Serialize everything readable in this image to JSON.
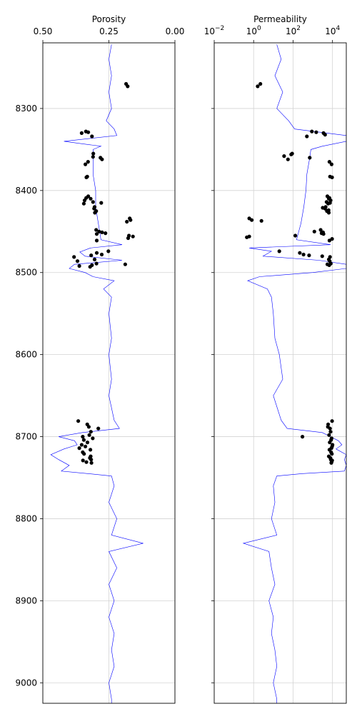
{
  "chart_data": [
    {
      "type": "scatter",
      "title": "Porosity",
      "x_scale": "linear",
      "x_reversed": true,
      "xlim": [
        0.5,
        0.0
      ],
      "ylim": [
        9025,
        8220
      ],
      "y_reversed": true,
      "x_tick_values": [
        0.5,
        0.25,
        0.0
      ],
      "x_tick_labels": [
        "0.50",
        "0.25",
        "0.00"
      ],
      "y_tick_values": [
        8300,
        8400,
        8500,
        8600,
        8700,
        8800,
        8900,
        9000
      ],
      "y_tick_labels": [
        "8300",
        "8400",
        "8500",
        "8600",
        "8700",
        "8800",
        "8900",
        "9000"
      ],
      "grid": true,
      "x_ticks_position": "top",
      "curve_color": "#0000ff",
      "point_color": "#000000",
      "log_curve": {
        "name": "",
        "points": [
          [
            8222,
            0.24
          ],
          [
            8240,
            0.25
          ],
          [
            8260,
            0.24
          ],
          [
            8280,
            0.25
          ],
          [
            8300,
            0.24
          ],
          [
            8315,
            0.26
          ],
          [
            8325,
            0.23
          ],
          [
            8333,
            0.22
          ],
          [
            8340,
            0.42
          ],
          [
            8346,
            0.28
          ],
          [
            8350,
            0.31
          ],
          [
            8360,
            0.31
          ],
          [
            8380,
            0.31
          ],
          [
            8400,
            0.3
          ],
          [
            8420,
            0.3
          ],
          [
            8440,
            0.29
          ],
          [
            8460,
            0.28
          ],
          [
            8466,
            0.2
          ],
          [
            8470,
            0.32
          ],
          [
            8475,
            0.36
          ],
          [
            8480,
            0.34
          ],
          [
            8485,
            0.2
          ],
          [
            8490,
            0.38
          ],
          [
            8495,
            0.4
          ],
          [
            8500,
            0.34
          ],
          [
            8505,
            0.31
          ],
          [
            8510,
            0.23
          ],
          [
            8520,
            0.27
          ],
          [
            8530,
            0.24
          ],
          [
            8550,
            0.25
          ],
          [
            8580,
            0.24
          ],
          [
            8600,
            0.25
          ],
          [
            8630,
            0.24
          ],
          [
            8650,
            0.25
          ],
          [
            8680,
            0.23
          ],
          [
            8690,
            0.21
          ],
          [
            8695,
            0.35
          ],
          [
            8700,
            0.44
          ],
          [
            8705,
            0.38
          ],
          [
            8710,
            0.37
          ],
          [
            8715,
            0.42
          ],
          [
            8722,
            0.47
          ],
          [
            8728,
            0.44
          ],
          [
            8735,
            0.4
          ],
          [
            8742,
            0.43
          ],
          [
            8745,
            0.33
          ],
          [
            8748,
            0.24
          ],
          [
            8760,
            0.23
          ],
          [
            8780,
            0.25
          ],
          [
            8800,
            0.22
          ],
          [
            8820,
            0.24
          ],
          [
            8830,
            0.12
          ],
          [
            8840,
            0.25
          ],
          [
            8860,
            0.22
          ],
          [
            8880,
            0.25
          ],
          [
            8900,
            0.23
          ],
          [
            8920,
            0.25
          ],
          [
            8940,
            0.23
          ],
          [
            8960,
            0.24
          ],
          [
            8980,
            0.23
          ],
          [
            9000,
            0.25
          ],
          [
            9020,
            0.24
          ],
          [
            9025,
            0.24
          ]
        ]
      },
      "core_points": [
        [
          8270,
          0.185
        ],
        [
          8273,
          0.179
        ],
        [
          8328,
          0.337
        ],
        [
          8329,
          0.328
        ],
        [
          8330,
          0.353
        ],
        [
          8334,
          0.314
        ],
        [
          8355,
          0.309
        ],
        [
          8359,
          0.31
        ],
        [
          8360,
          0.282
        ],
        [
          8362,
          0.276
        ],
        [
          8365,
          0.329
        ],
        [
          8368,
          0.339
        ],
        [
          8383,
          0.332
        ],
        [
          8384,
          0.335
        ],
        [
          8407,
          0.328
        ],
        [
          8409,
          0.336
        ],
        [
          8410,
          0.319
        ],
        [
          8412,
          0.342
        ],
        [
          8414,
          0.31
        ],
        [
          8415,
          0.279
        ],
        [
          8416,
          0.345
        ],
        [
          8420,
          0.304
        ],
        [
          8422,
          0.306
        ],
        [
          8425,
          0.298
        ],
        [
          8427,
          0.303
        ],
        [
          8434,
          0.171
        ],
        [
          8436,
          0.168
        ],
        [
          8438,
          0.182
        ],
        [
          8448,
          0.298
        ],
        [
          8450,
          0.287
        ],
        [
          8451,
          0.276
        ],
        [
          8452,
          0.263
        ],
        [
          8453,
          0.296
        ],
        [
          8455,
          0.174
        ],
        [
          8456,
          0.159
        ],
        [
          8458,
          0.177
        ],
        [
          8461,
          0.296
        ],
        [
          8474,
          0.252
        ],
        [
          8476,
          0.296
        ],
        [
          8478,
          0.277
        ],
        [
          8479,
          0.317
        ],
        [
          8481,
          0.382
        ],
        [
          8484,
          0.304
        ],
        [
          8486,
          0.369
        ],
        [
          8489,
          0.297
        ],
        [
          8490,
          0.188
        ],
        [
          8491,
          0.314
        ],
        [
          8492,
          0.362
        ],
        [
          8493,
          0.321
        ],
        [
          8681,
          0.366
        ],
        [
          8685,
          0.332
        ],
        [
          8688,
          0.326
        ],
        [
          8690,
          0.29
        ],
        [
          8694,
          0.318
        ],
        [
          8698,
          0.324
        ],
        [
          8700,
          0.349
        ],
        [
          8702,
          0.311
        ],
        [
          8704,
          0.345
        ],
        [
          8707,
          0.331
        ],
        [
          8710,
          0.353
        ],
        [
          8712,
          0.339
        ],
        [
          8714,
          0.362
        ],
        [
          8716,
          0.32
        ],
        [
          8719,
          0.349
        ],
        [
          8721,
          0.344
        ],
        [
          8724,
          0.319
        ],
        [
          8726,
          0.322
        ],
        [
          8728,
          0.317
        ],
        [
          8729,
          0.348
        ],
        [
          8731,
          0.335
        ],
        [
          8732,
          0.316
        ]
      ]
    },
    {
      "type": "scatter",
      "title": "Permeability",
      "x_scale": "log",
      "xlim": [
        0.01,
        50000
      ],
      "ylim": [
        9025,
        8220
      ],
      "y_reversed": true,
      "x_tick_values": [
        0.01,
        1,
        100,
        10000
      ],
      "x_tick_labels": [
        {
          "base": "10",
          "exp": "−2"
        },
        {
          "base": "10",
          "exp": "0"
        },
        {
          "base": "10",
          "exp": "2"
        },
        {
          "base": "10",
          "exp": "4"
        }
      ],
      "y_tick_values": [
        8300,
        8400,
        8500,
        8600,
        8700,
        8800,
        8900,
        9000
      ],
      "grid": true,
      "x_ticks_position": "top",
      "curve_color": "#0000ff",
      "point_color": "#000000",
      "log_curve": {
        "name": "",
        "points": [
          [
            8222,
            15
          ],
          [
            8240,
            25
          ],
          [
            8260,
            12
          ],
          [
            8280,
            30
          ],
          [
            8300,
            15
          ],
          [
            8315,
            60
          ],
          [
            8325,
            120
          ],
          [
            8333,
            60000
          ],
          [
            8340,
            50000
          ],
          [
            8346,
            3000
          ],
          [
            8350,
            800
          ],
          [
            8360,
            700
          ],
          [
            8380,
            500
          ],
          [
            8400,
            450
          ],
          [
            8420,
            350
          ],
          [
            8440,
            250
          ],
          [
            8460,
            150
          ],
          [
            8466,
            8000
          ],
          [
            8470,
            0.6
          ],
          [
            8474,
            8
          ],
          [
            8480,
            3
          ],
          [
            8485,
            2000
          ],
          [
            8490,
            60000
          ],
          [
            8495,
            60000
          ],
          [
            8500,
            1000
          ],
          [
            8505,
            2
          ],
          [
            8510,
            0.5
          ],
          [
            8520,
            5
          ],
          [
            8530,
            8
          ],
          [
            8550,
            10
          ],
          [
            8580,
            12
          ],
          [
            8600,
            20
          ],
          [
            8630,
            30
          ],
          [
            8650,
            10
          ],
          [
            8680,
            25
          ],
          [
            8690,
            50
          ],
          [
            8695,
            3000
          ],
          [
            8700,
            8000
          ],
          [
            8705,
            20000
          ],
          [
            8710,
            30000
          ],
          [
            8715,
            15000
          ],
          [
            8722,
            60000
          ],
          [
            8728,
            40000
          ],
          [
            8735,
            60000
          ],
          [
            8742,
            40000
          ],
          [
            8745,
            300
          ],
          [
            8748,
            15
          ],
          [
            8760,
            10
          ],
          [
            8780,
            12
          ],
          [
            8800,
            8
          ],
          [
            8820,
            15
          ],
          [
            8830,
            0.3
          ],
          [
            8840,
            6
          ],
          [
            8860,
            8
          ],
          [
            8880,
            12
          ],
          [
            8900,
            6
          ],
          [
            8920,
            10
          ],
          [
            8940,
            8
          ],
          [
            8960,
            12
          ],
          [
            8980,
            15
          ],
          [
            9000,
            10
          ],
          [
            9020,
            15
          ],
          [
            9025,
            15
          ]
        ]
      },
      "core_points": [
        [
          8270,
          2.2
        ],
        [
          8273,
          1.6
        ],
        [
          8328,
          900
        ],
        [
          8329,
          1500
        ],
        [
          8330,
          3500
        ],
        [
          8332,
          4200
        ],
        [
          8334,
          500
        ],
        [
          8355,
          90
        ],
        [
          8356,
          80
        ],
        [
          8358,
          35
        ],
        [
          8360,
          700
        ],
        [
          8362,
          55
        ],
        [
          8365,
          7000
        ],
        [
          8368,
          9000
        ],
        [
          8383,
          7500
        ],
        [
          8384,
          9500
        ],
        [
          8407,
          5500
        ],
        [
          8409,
          7000
        ],
        [
          8410,
          6500
        ],
        [
          8412,
          8000
        ],
        [
          8414,
          5000
        ],
        [
          8415,
          7500
        ],
        [
          8416,
          6000
        ],
        [
          8420,
          4500
        ],
        [
          8421,
          3200
        ],
        [
          8422,
          4200
        ],
        [
          8424,
          6300
        ],
        [
          8425,
          5200
        ],
        [
          8427,
          6500
        ],
        [
          8434,
          0.6
        ],
        [
          8436,
          0.8
        ],
        [
          8437,
          2.5
        ],
        [
          8448,
          2500
        ],
        [
          8450,
          1200
        ],
        [
          8451,
          3300
        ],
        [
          8452,
          2800
        ],
        [
          8453,
          3500
        ],
        [
          8455,
          130
        ],
        [
          8456,
          0.6
        ],
        [
          8457,
          0.45
        ],
        [
          8459,
          9500
        ],
        [
          8461,
          7000
        ],
        [
          8474,
          20
        ],
        [
          8476,
          220
        ],
        [
          8478,
          340
        ],
        [
          8479,
          650
        ],
        [
          8480,
          3000
        ],
        [
          8481,
          7500
        ],
        [
          8484,
          6500
        ],
        [
          8486,
          7200
        ],
        [
          8489,
          8200
        ],
        [
          8490,
          5500
        ],
        [
          8491,
          6800
        ],
        [
          8681,
          9500
        ],
        [
          8685,
          6000
        ],
        [
          8688,
          5800
        ],
        [
          8690,
          7500
        ],
        [
          8694,
          8000
        ],
        [
          8698,
          6700
        ],
        [
          8700,
          300
        ],
        [
          8702,
          9000
        ],
        [
          8704,
          8500
        ],
        [
          8707,
          7200
        ],
        [
          8710,
          10000
        ],
        [
          8712,
          9500
        ],
        [
          8714,
          8800
        ],
        [
          8716,
          7000
        ],
        [
          8719,
          8500
        ],
        [
          8721,
          9300
        ],
        [
          8724,
          6500
        ],
        [
          8726,
          7800
        ],
        [
          8728,
          8200
        ],
        [
          8729,
          9600
        ],
        [
          8731,
          9000
        ],
        [
          8732,
          8700
        ]
      ]
    }
  ]
}
